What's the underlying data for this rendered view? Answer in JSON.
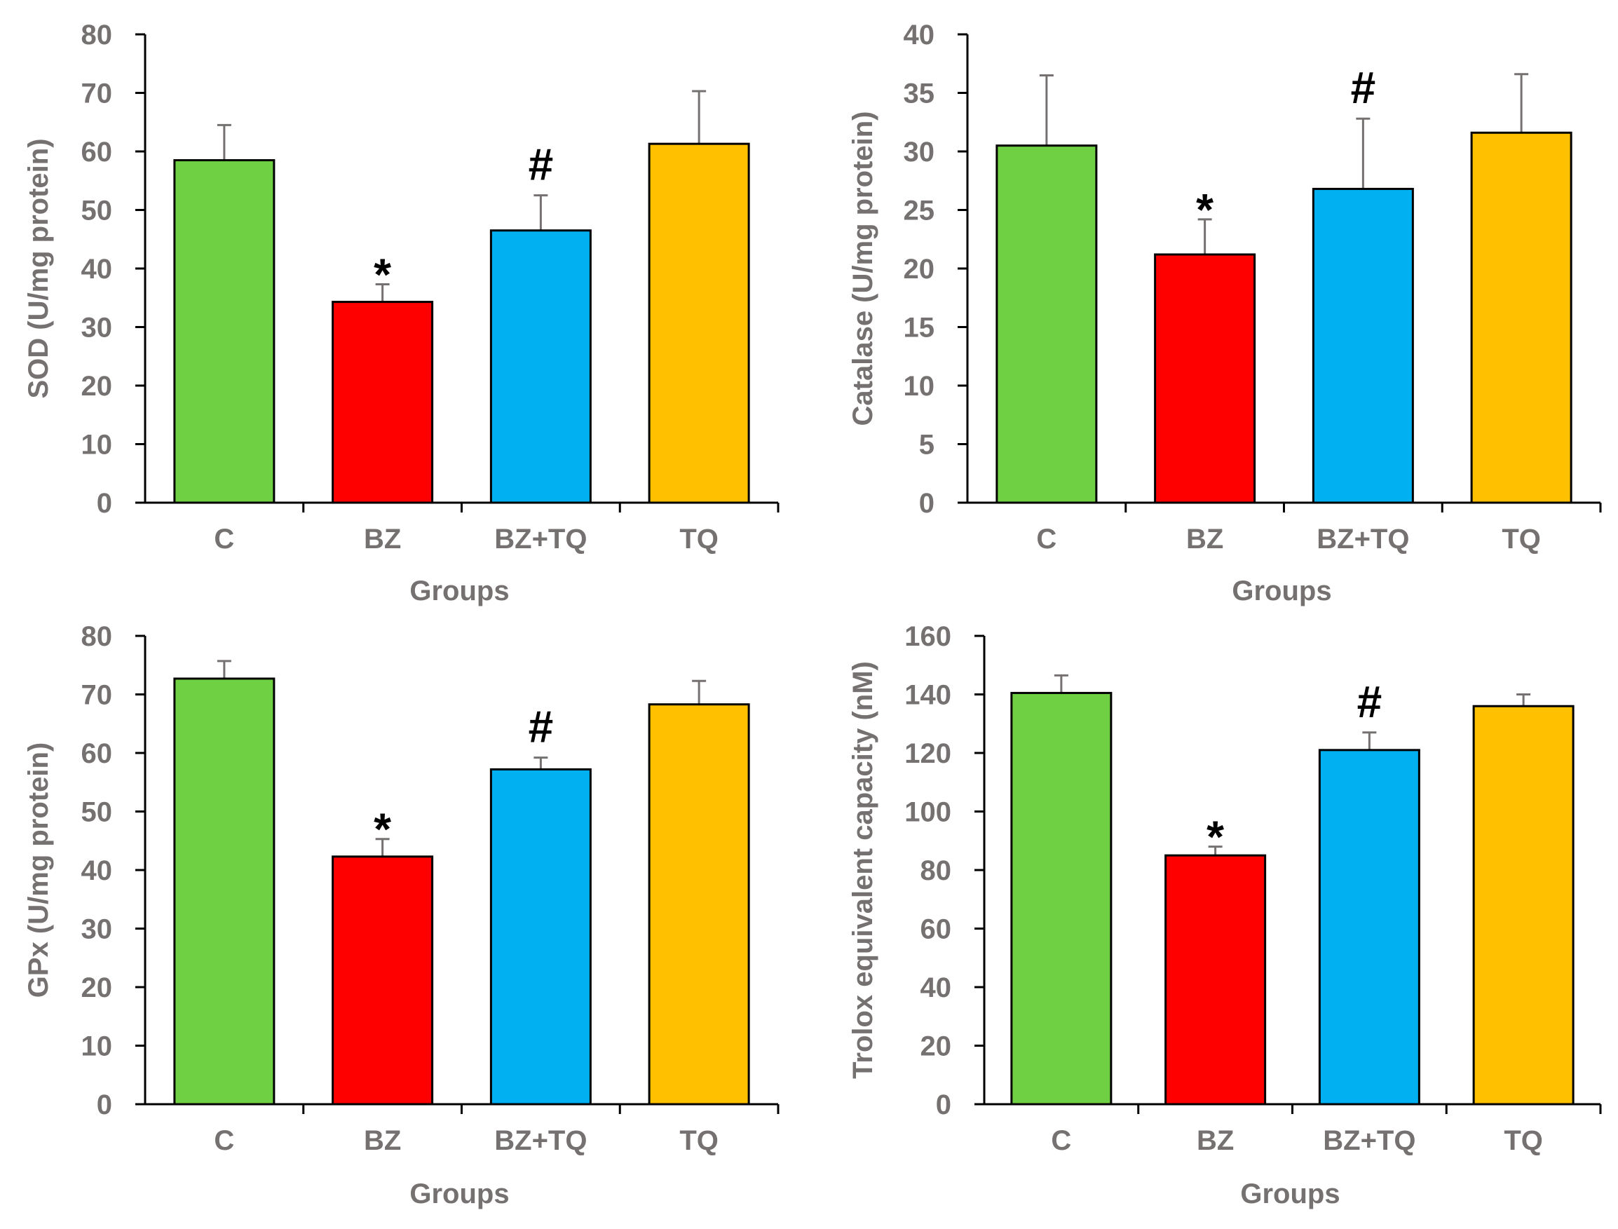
{
  "chart_data": [
    {
      "type": "bar",
      "panel": "top-left",
      "title": "",
      "xlabel": "Groups",
      "ylabel": "SOD (U/mg protein)",
      "categories": [
        "C",
        "BZ",
        "BZ+TQ",
        "TQ"
      ],
      "values": [
        58.5,
        34.3,
        46.5,
        61.3
      ],
      "errors": [
        6.0,
        3.0,
        6.0,
        9.0
      ],
      "annotations": [
        "",
        "*",
        "#",
        ""
      ],
      "ylim": [
        0,
        80
      ],
      "yticks": [
        0,
        10,
        20,
        30,
        40,
        50,
        60,
        70,
        80
      ],
      "grid": false
    },
    {
      "type": "bar",
      "panel": "top-right",
      "title": "",
      "xlabel": "Groups",
      "ylabel": "Catalase (U/mg protein)",
      "categories": [
        "C",
        "BZ",
        "BZ+TQ",
        "TQ"
      ],
      "values": [
        30.5,
        21.2,
        26.8,
        31.6
      ],
      "errors": [
        6.0,
        3.0,
        6.0,
        5.0
      ],
      "annotations": [
        "",
        "*",
        "#",
        ""
      ],
      "ylim": [
        0,
        40
      ],
      "yticks": [
        0,
        5,
        10,
        15,
        20,
        25,
        30,
        35,
        40
      ],
      "grid": false
    },
    {
      "type": "bar",
      "panel": "bottom-left",
      "title": "",
      "xlabel": "Groups",
      "ylabel": "GPx (U/mg protein)",
      "categories": [
        "C",
        "BZ",
        "BZ+TQ",
        "TQ"
      ],
      "values": [
        72.7,
        42.3,
        57.2,
        68.3
      ],
      "errors": [
        3.0,
        3.0,
        2.0,
        4.0
      ],
      "annotations": [
        "",
        "*",
        "#",
        ""
      ],
      "ylim": [
        0,
        80
      ],
      "yticks": [
        0,
        10,
        20,
        30,
        40,
        50,
        60,
        70,
        80
      ],
      "grid": false
    },
    {
      "type": "bar",
      "panel": "bottom-right",
      "title": "",
      "xlabel": "Groups",
      "ylabel": "Trolox equivalent capacity (nM)",
      "categories": [
        "C",
        "BZ",
        "BZ+TQ",
        "TQ"
      ],
      "values": [
        140.5,
        85.0,
        121.0,
        136.0
      ],
      "errors": [
        6.0,
        3.0,
        6.0,
        4.0
      ],
      "annotations": [
        "",
        "*",
        "#",
        ""
      ],
      "ylim": [
        0,
        160
      ],
      "yticks": [
        0,
        20,
        40,
        60,
        80,
        100,
        120,
        140,
        160
      ],
      "grid": false
    }
  ],
  "colors": {
    "bars": [
      "#70D044",
      "#FF0000",
      "#00B0F0",
      "#FFC000"
    ],
    "axis": "#000000",
    "error_bar": "#767171",
    "text": "#767171",
    "marker": "#000000"
  }
}
